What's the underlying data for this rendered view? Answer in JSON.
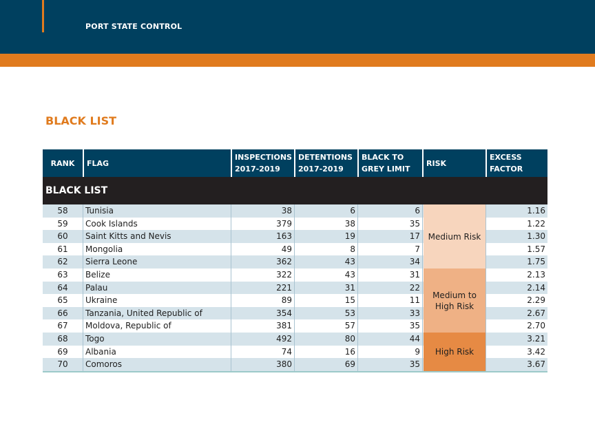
{
  "header": {
    "title": "PORT STATE CONTROL"
  },
  "section_heading": "BLACK LIST",
  "table": {
    "columns": [
      "RANK",
      "FLAG",
      "INSPECTIONS 2017-2019",
      "DETENTIONS 2017-2019",
      "BLACK TO GREY LIMIT",
      "RISK",
      "EXCESS FACTOR"
    ],
    "column_lines": {
      "rank": [
        "RANK"
      ],
      "flag": [
        "FLAG"
      ],
      "inspections": [
        "INSPECTIONS",
        "2017-2019"
      ],
      "detentions": [
        "DETENTIONS",
        "2017-2019"
      ],
      "limit": [
        "BLACK TO",
        "GREY LIMIT"
      ],
      "risk": [
        "RISK"
      ],
      "excess": [
        "EXCESS",
        "FACTOR"
      ]
    },
    "group_label": "BLACK LIST",
    "rows": [
      {
        "rank": "58",
        "flag": "Tunisia",
        "inspections": "38",
        "detentions": "6",
        "limit": "6",
        "excess": "1.16"
      },
      {
        "rank": "59",
        "flag": "Cook Islands",
        "inspections": "379",
        "detentions": "38",
        "limit": "35",
        "excess": "1.22"
      },
      {
        "rank": "60",
        "flag": "Saint Kitts and Nevis",
        "inspections": "163",
        "detentions": "19",
        "limit": "17",
        "excess": "1.30"
      },
      {
        "rank": "61",
        "flag": "Mongolia",
        "inspections": "49",
        "detentions": "8",
        "limit": "7",
        "excess": "1.57"
      },
      {
        "rank": "62",
        "flag": "Sierra Leone",
        "inspections": "362",
        "detentions": "43",
        "limit": "34",
        "excess": "1.75"
      },
      {
        "rank": "63",
        "flag": "Belize",
        "inspections": "322",
        "detentions": "43",
        "limit": "31",
        "excess": "2.13"
      },
      {
        "rank": "64",
        "flag": "Palau",
        "inspections": "221",
        "detentions": "31",
        "limit": "22",
        "excess": "2.14"
      },
      {
        "rank": "65",
        "flag": "Ukraine",
        "inspections": "89",
        "detentions": "15",
        "limit": "11",
        "excess": "2.29"
      },
      {
        "rank": "66",
        "flag": "Tanzania, United Republic of",
        "inspections": "354",
        "detentions": "53",
        "limit": "33",
        "excess": "2.67"
      },
      {
        "rank": "67",
        "flag": "Moldova, Republic of",
        "inspections": "381",
        "detentions": "57",
        "limit": "35",
        "excess": "2.70"
      },
      {
        "rank": "68",
        "flag": "Togo",
        "inspections": "492",
        "detentions": "80",
        "limit": "44",
        "excess": "3.21"
      },
      {
        "rank": "69",
        "flag": "Albania",
        "inspections": "74",
        "detentions": "16",
        "limit": "9",
        "excess": "3.42"
      },
      {
        "rank": "70",
        "flag": "Comoros",
        "inspections": "380",
        "detentions": "69",
        "limit": "35",
        "excess": "3.67"
      }
    ],
    "risk_groups": [
      {
        "label_lines": [
          "Medium Risk"
        ],
        "first_row": 0,
        "row_count": 5,
        "color": "#f7d5bd"
      },
      {
        "label_lines": [
          "Medium to",
          "High Risk"
        ],
        "first_row": 5,
        "row_count": 5,
        "color": "#efb185"
      },
      {
        "label_lines": [
          "High Risk"
        ],
        "first_row": 10,
        "row_count": 3,
        "color": "#e68a44"
      }
    ]
  },
  "colors": {
    "navy": "#00405f",
    "orange": "#e07b1e",
    "row_tint": "#d5e3ea",
    "group_bar": "#231f20"
  }
}
